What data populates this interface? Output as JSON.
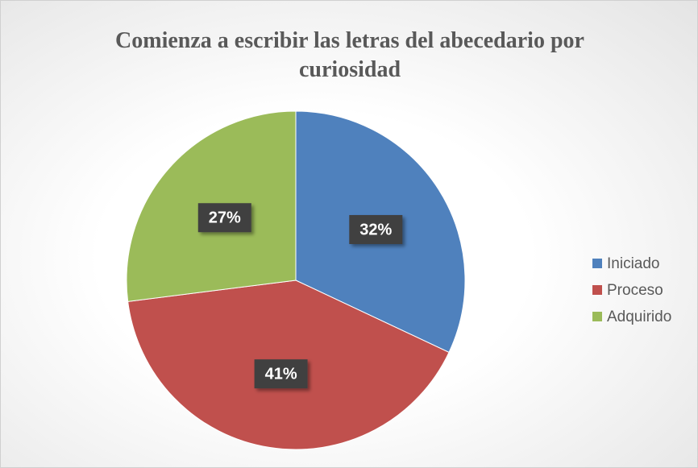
{
  "chart_data": {
    "type": "pie",
    "title": "Comienza a escribir las letras del abecedario por curiosidad",
    "categories": [
      "Iniciado",
      "Proceso",
      "Adquirido"
    ],
    "values": [
      32,
      41,
      27
    ],
    "value_labels": [
      "32%",
      "41%",
      "27%"
    ],
    "colors": [
      "#4f81bd",
      "#c0504d",
      "#9bbb59"
    ],
    "legend": "right"
  }
}
